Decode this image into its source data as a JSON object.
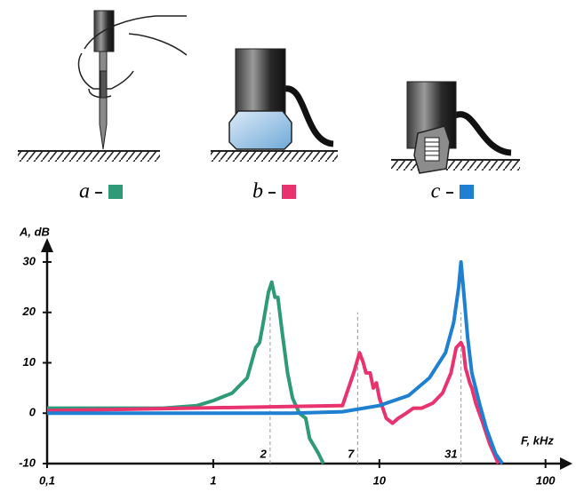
{
  "chart_data": {
    "type": "line",
    "y_label": "A, dB",
    "x_label": "F, kHz",
    "xscale": "log",
    "xlim": [
      0.1,
      130
    ],
    "ylim": [
      -10,
      33
    ],
    "xticks": [
      {
        "value": 0.1,
        "label": "0,1"
      },
      1,
      10,
      100
    ],
    "yticks": [
      -10,
      0,
      10,
      20,
      30
    ],
    "grid": false,
    "markers": [
      {
        "value": 2.2,
        "label": "2"
      },
      {
        "value": 7.4,
        "label": "7"
      },
      {
        "value": 31,
        "label": "31"
      }
    ],
    "series": [
      {
        "name": "a",
        "color": "#2e9a78",
        "x": [
          0.1,
          0.5,
          0.8,
          1.0,
          1.3,
          1.6,
          1.8,
          1.9,
          2.0,
          2.15,
          2.25,
          2.35,
          2.45,
          2.6,
          2.8,
          3.0,
          3.3,
          3.6,
          3.8,
          4.3,
          4.6
        ],
        "values": [
          1,
          1,
          1.5,
          2.5,
          4,
          7,
          13,
          14,
          18,
          24,
          26,
          23,
          23,
          16,
          8,
          3,
          0,
          -1,
          -5,
          -8,
          -10
        ]
      },
      {
        "name": "b",
        "color": "#e8336e",
        "x": [
          0.1,
          6,
          7,
          7.6,
          8,
          8.3,
          8.8,
          9.2,
          9.6,
          10,
          11,
          12,
          13,
          14.5,
          16,
          18,
          21,
          24,
          27,
          29,
          31,
          32,
          33,
          35,
          36,
          38,
          42,
          46,
          52
        ],
        "values": [
          0.5,
          1.5,
          8,
          12,
          10,
          8,
          8,
          5,
          6,
          3,
          -1,
          -2,
          -1,
          0,
          1,
          1,
          2,
          4,
          8,
          13,
          14,
          13,
          9,
          6,
          5,
          2,
          -2,
          -6,
          -10
        ]
      },
      {
        "name": "c",
        "color": "#1f7fd0",
        "x": [
          0.1,
          3,
          6,
          10,
          15,
          20,
          25,
          28,
          30,
          31,
          32,
          34,
          36,
          40,
          44,
          50,
          55
        ],
        "values": [
          0,
          0,
          0.3,
          1.5,
          3.5,
          7,
          12,
          18,
          25,
          30,
          25,
          15,
          8,
          2,
          -3,
          -8,
          -10
        ]
      }
    ]
  }
}
